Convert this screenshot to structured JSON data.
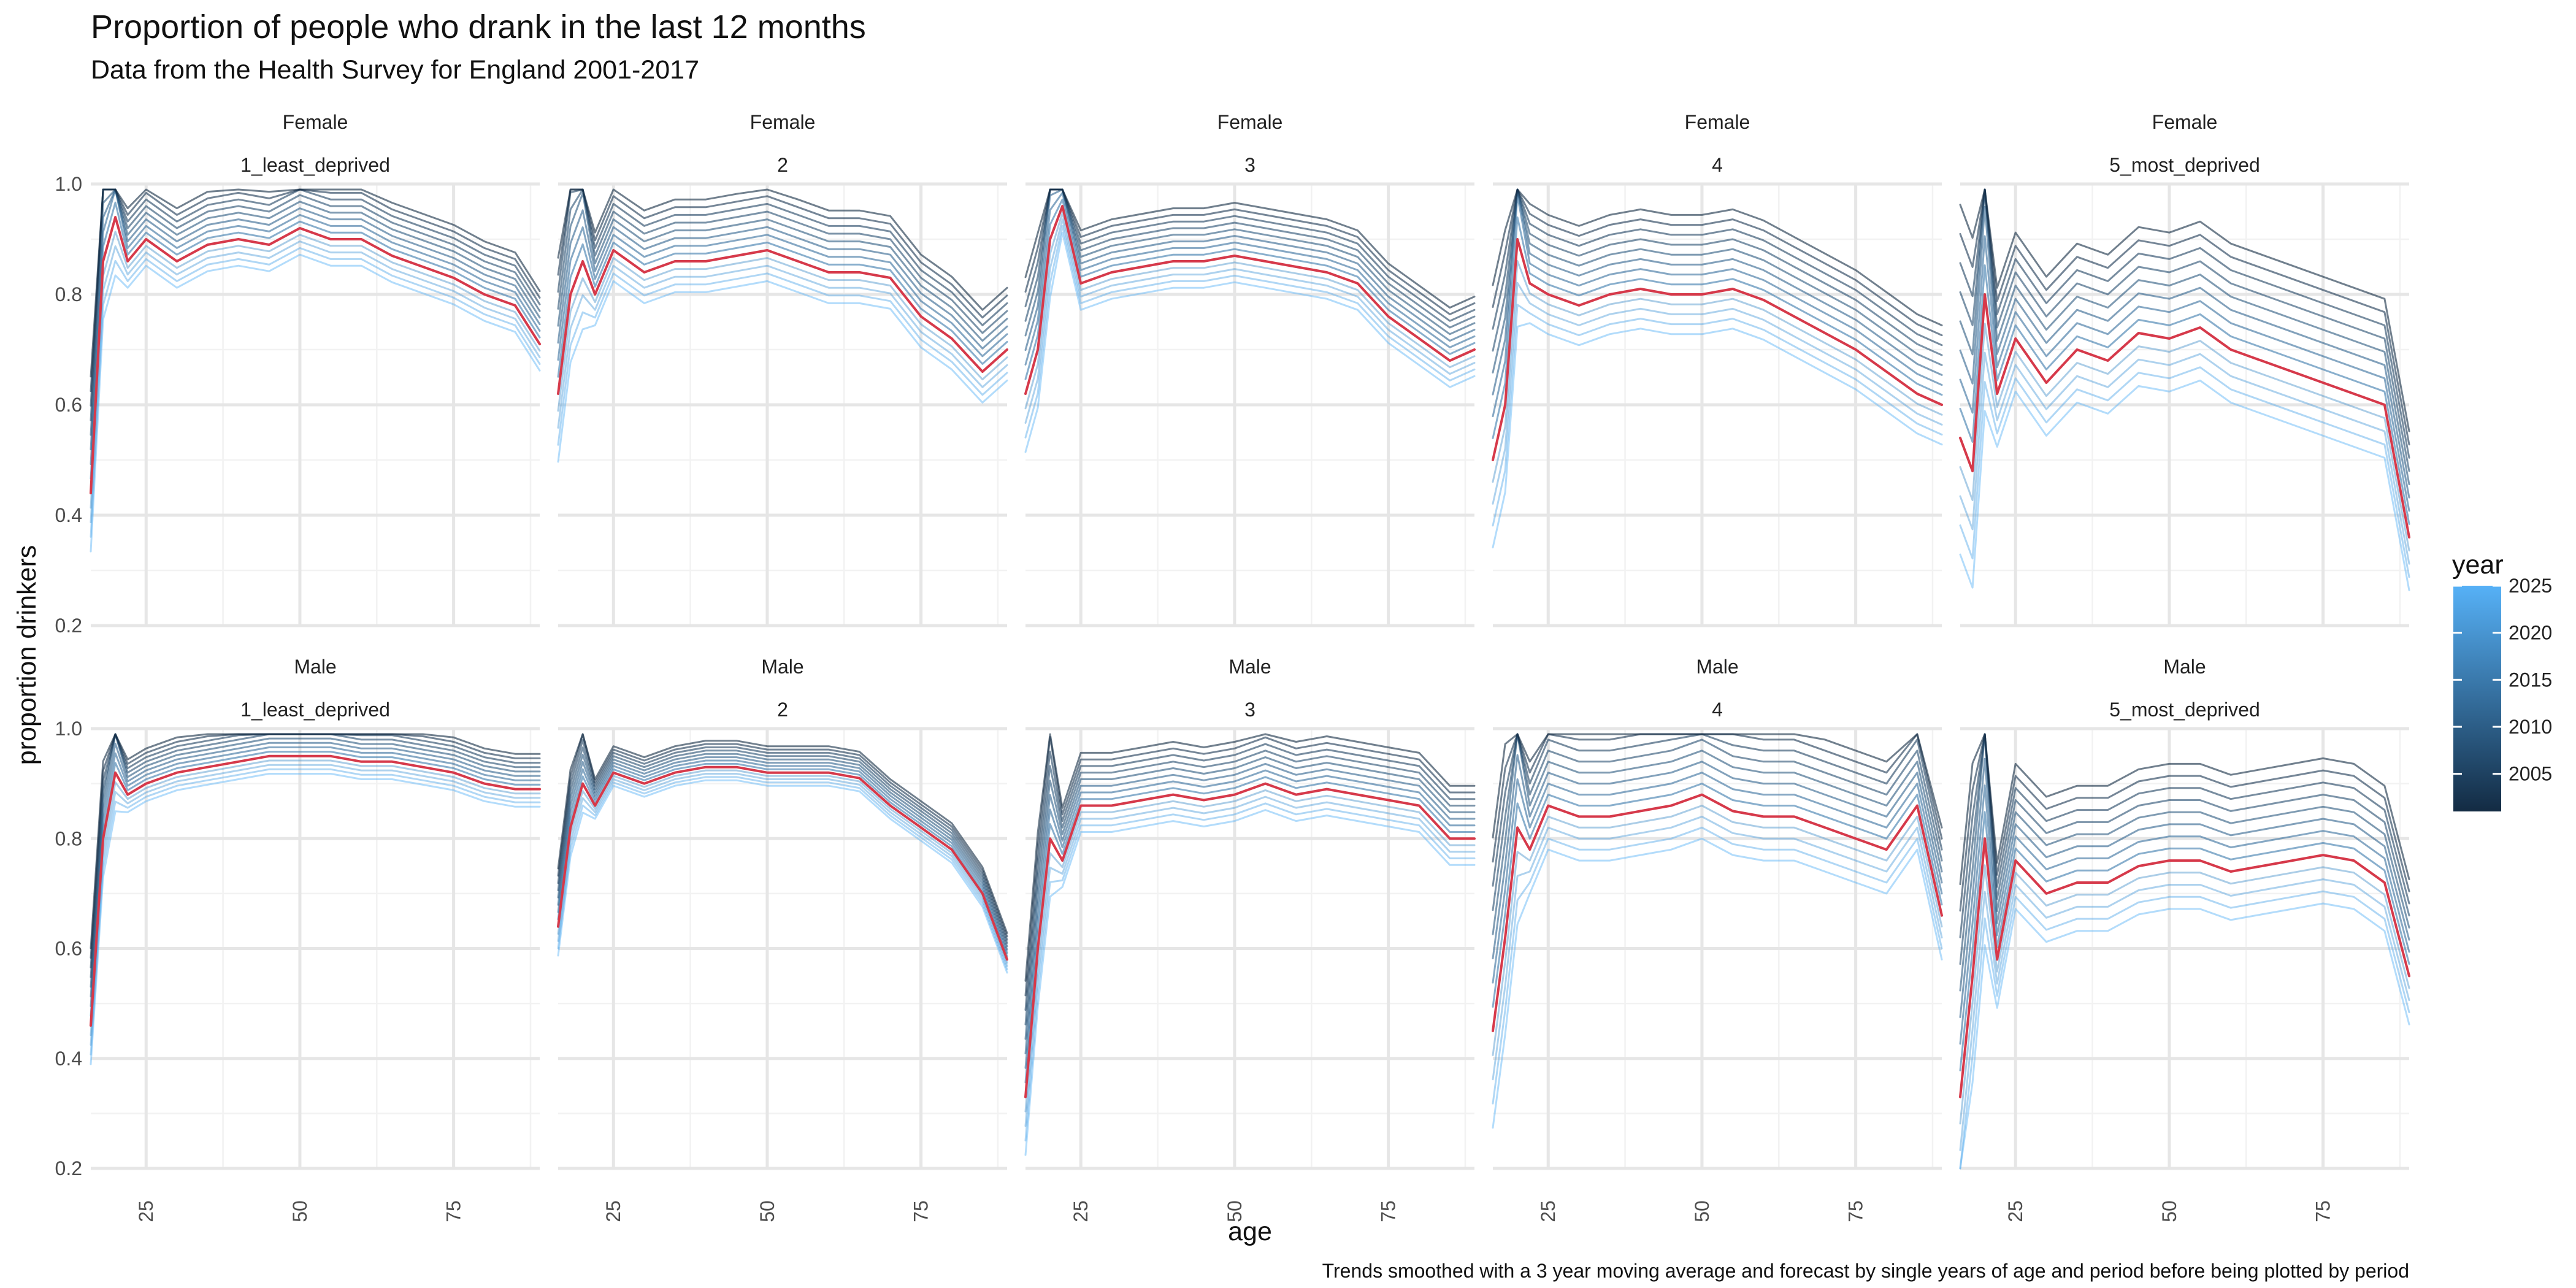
{
  "chart_data": {
    "type": "line",
    "title": "Proportion of people who drank in the last 12 months",
    "subtitle": "Data from the Health Survey for England 2001-2017",
    "xlabel": "age",
    "ylabel": "proportion drinkers",
    "caption": "Trends smoothed with a 3 year moving average and forecast by single years of age and period before being plotted by period",
    "xlim": [
      16,
      89
    ],
    "ylim": [
      0.2,
      1.0
    ],
    "x_ticks": [
      25,
      50,
      75
    ],
    "y_ticks": [
      "0.2",
      "0.4",
      "0.6",
      "0.8",
      "1.0"
    ],
    "grid": true,
    "legend": {
      "title": "year",
      "position": "right",
      "type": "colorbar",
      "range": [
        2001,
        2025
      ],
      "breaks": [
        "2025",
        "2020",
        "2015",
        "2010",
        "2005"
      ],
      "low_color": "#132b43",
      "high_color": "#56b1f7"
    },
    "highlight_year": 2017,
    "highlight_color": "#d6394a",
    "facet_rows": [
      {
        "sex": "Female",
        "quintiles": [
          "1_least_deprived",
          "2",
          "3",
          "4",
          "5_most_deprived"
        ]
      },
      {
        "sex": "Male",
        "quintiles": [
          "1_least_deprived",
          "2",
          "3",
          "4",
          "5_most_deprived"
        ]
      }
    ],
    "year_series": {
      "years": [
        2001,
        2003,
        2005,
        2007,
        2009,
        2011,
        2013,
        2015,
        2017,
        2019,
        2021,
        2023,
        2025
      ],
      "note_rule": "value(year) = highlight_value + slope * (2017 - year) for ages 22 and above; ages below 22 vary more between years"
    },
    "panels": [
      {
        "sex": "Female",
        "quintile": "1_least_deprived",
        "slope": 0.006,
        "ages": [
          16,
          18,
          20,
          22,
          25,
          30,
          35,
          40,
          45,
          50,
          55,
          60,
          65,
          70,
          75,
          80,
          85,
          89
        ],
        "values_2017": [
          0.44,
          0.86,
          0.94,
          0.86,
          0.9,
          0.86,
          0.89,
          0.9,
          0.89,
          0.92,
          0.9,
          0.9,
          0.87,
          0.85,
          0.83,
          0.8,
          0.78,
          0.71
        ]
      },
      {
        "sex": "Female",
        "quintile": "2",
        "slope": 0.007,
        "ages": [
          16,
          18,
          20,
          22,
          25,
          30,
          35,
          40,
          45,
          50,
          55,
          60,
          65,
          70,
          75,
          80,
          85,
          89
        ],
        "values_2017": [
          0.62,
          0.8,
          0.86,
          0.8,
          0.88,
          0.84,
          0.86,
          0.86,
          0.87,
          0.88,
          0.86,
          0.84,
          0.84,
          0.83,
          0.76,
          0.72,
          0.66,
          0.7
        ]
      },
      {
        "sex": "Female",
        "quintile": "3",
        "slope": 0.006,
        "ages": [
          16,
          18,
          20,
          22,
          25,
          30,
          35,
          40,
          45,
          50,
          55,
          60,
          65,
          70,
          75,
          80,
          85,
          89
        ],
        "values_2017": [
          0.62,
          0.7,
          0.9,
          0.96,
          0.82,
          0.84,
          0.85,
          0.86,
          0.86,
          0.87,
          0.86,
          0.85,
          0.84,
          0.82,
          0.76,
          0.72,
          0.68,
          0.7
        ]
      },
      {
        "sex": "Female",
        "quintile": "4",
        "slope": 0.009,
        "ages": [
          16,
          18,
          20,
          22,
          25,
          30,
          35,
          40,
          45,
          50,
          55,
          60,
          65,
          70,
          75,
          80,
          85,
          89
        ],
        "values_2017": [
          0.5,
          0.6,
          0.9,
          0.82,
          0.8,
          0.78,
          0.8,
          0.81,
          0.8,
          0.8,
          0.81,
          0.79,
          0.76,
          0.73,
          0.7,
          0.66,
          0.62,
          0.6
        ]
      },
      {
        "sex": "Female",
        "quintile": "5_most_deprived",
        "slope": 0.012,
        "ages": [
          16,
          18,
          20,
          22,
          25,
          30,
          35,
          40,
          45,
          50,
          55,
          60,
          65,
          70,
          75,
          80,
          85,
          89
        ],
        "values_2017": [
          0.54,
          0.48,
          0.8,
          0.62,
          0.72,
          0.64,
          0.7,
          0.68,
          0.73,
          0.72,
          0.74,
          0.7,
          0.68,
          0.66,
          0.64,
          0.62,
          0.6,
          0.36
        ]
      },
      {
        "sex": "Male",
        "quintile": "1_least_deprived",
        "slope": 0.004,
        "ages": [
          16,
          18,
          20,
          22,
          25,
          30,
          35,
          40,
          45,
          50,
          55,
          60,
          65,
          70,
          75,
          80,
          85,
          89
        ],
        "values_2017": [
          0.46,
          0.8,
          0.92,
          0.88,
          0.9,
          0.92,
          0.93,
          0.94,
          0.95,
          0.95,
          0.95,
          0.94,
          0.94,
          0.93,
          0.92,
          0.9,
          0.89,
          0.89
        ]
      },
      {
        "sex": "Male",
        "quintile": "2",
        "slope": 0.003,
        "ages": [
          16,
          18,
          20,
          22,
          25,
          30,
          35,
          40,
          45,
          50,
          55,
          60,
          65,
          70,
          75,
          80,
          85,
          89
        ],
        "values_2017": [
          0.64,
          0.82,
          0.9,
          0.86,
          0.92,
          0.9,
          0.92,
          0.93,
          0.93,
          0.92,
          0.92,
          0.92,
          0.91,
          0.86,
          0.82,
          0.78,
          0.7,
          0.58
        ]
      },
      {
        "sex": "Male",
        "quintile": "3",
        "slope": 0.006,
        "ages": [
          16,
          18,
          20,
          22,
          25,
          30,
          35,
          40,
          45,
          50,
          55,
          60,
          65,
          70,
          75,
          80,
          85,
          89
        ],
        "values_2017": [
          0.33,
          0.6,
          0.8,
          0.76,
          0.86,
          0.86,
          0.87,
          0.88,
          0.87,
          0.88,
          0.9,
          0.88,
          0.89,
          0.88,
          0.87,
          0.86,
          0.8,
          0.8
        ]
      },
      {
        "sex": "Male",
        "quintile": "4",
        "slope": 0.01,
        "ages": [
          16,
          18,
          20,
          22,
          25,
          30,
          35,
          40,
          45,
          50,
          55,
          60,
          65,
          70,
          75,
          80,
          85,
          89
        ],
        "values_2017": [
          0.45,
          0.62,
          0.82,
          0.78,
          0.86,
          0.84,
          0.84,
          0.85,
          0.86,
          0.88,
          0.85,
          0.84,
          0.84,
          0.82,
          0.8,
          0.78,
          0.86,
          0.66
        ]
      },
      {
        "sex": "Male",
        "quintile": "5_most_deprived",
        "slope": 0.011,
        "ages": [
          16,
          18,
          20,
          22,
          25,
          30,
          35,
          40,
          45,
          50,
          55,
          60,
          65,
          70,
          75,
          80,
          85,
          89
        ],
        "values_2017": [
          0.33,
          0.55,
          0.8,
          0.58,
          0.76,
          0.7,
          0.72,
          0.72,
          0.75,
          0.76,
          0.76,
          0.74,
          0.75,
          0.76,
          0.77,
          0.76,
          0.72,
          0.55
        ]
      }
    ]
  }
}
